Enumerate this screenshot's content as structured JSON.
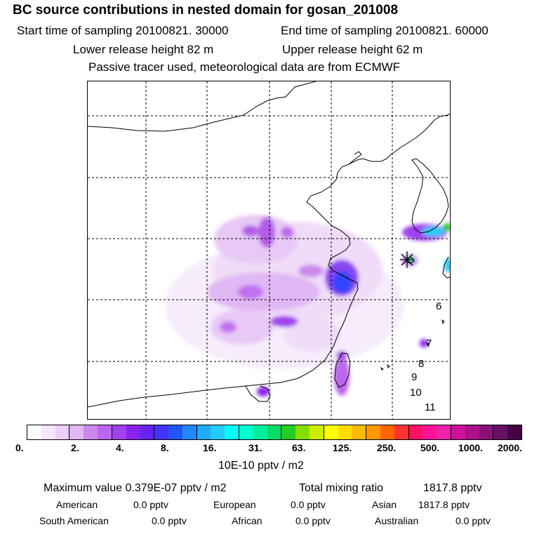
{
  "header": {
    "title": "BC  source contributions in nested domain for gosan_201008",
    "start_label": "Start time of sampling 20100821. 30000",
    "end_label": "End time of sampling 20100821. 60000",
    "lower_label": "Lower release height   82 m",
    "upper_label": "Upper release height   62 m",
    "tracer_note": "Passive tracer used, meteorological data are from ECMWF"
  },
  "map": {
    "day_labels": [
      "6",
      "7",
      "8",
      "9",
      "10",
      "11"
    ],
    "release_marker": "asterisk"
  },
  "colorbar": {
    "colors": [
      "#ffffff",
      "#f4e6fb",
      "#ead0f8",
      "#e0b8f4",
      "#cc88ee",
      "#bb66ee",
      "#a040ee",
      "#8822ee",
      "#6622ee",
      "#4433ff",
      "#2255ff",
      "#2288ff",
      "#22aaff",
      "#22ccff",
      "#00ffff",
      "#00ffcc",
      "#00ee99",
      "#00dd66",
      "#22cc22",
      "#88dd00",
      "#ccee00",
      "#ffff00",
      "#ffdd00",
      "#ffbb00",
      "#ff9900",
      "#ff6600",
      "#ff3333",
      "#ff1166",
      "#ff1199",
      "#ee22aa",
      "#cc1199",
      "#aa1188",
      "#881177",
      "#661166",
      "#440044"
    ],
    "tick_labels": [
      "0.",
      "2.",
      "4.",
      "8.",
      "16.",
      "31.",
      "63.",
      "125.",
      "250.",
      "500.",
      "1000.",
      "2000."
    ],
    "unit_label": "10E-10 pptv / m2"
  },
  "stats": {
    "max_label": "Maximum value  0.379E-07 pptv / m2",
    "total_label": "Total mixing ratio",
    "total_value": "1817.8 pptv",
    "american_label": "American",
    "american_value": "0.0 pptv",
    "european_label": "European",
    "european_value": "0.0 pptv",
    "asian_label": "Asian",
    "asian_value": "1817.8 pptv",
    "south_american_label": "South American",
    "south_american_value": "0.0 pptv",
    "african_label": "African",
    "african_value": "0.0 pptv",
    "australian_label": "Australian",
    "australian_value": "0.0 pptv"
  },
  "colors": {
    "grid": "#000000",
    "coast": "#000000"
  }
}
